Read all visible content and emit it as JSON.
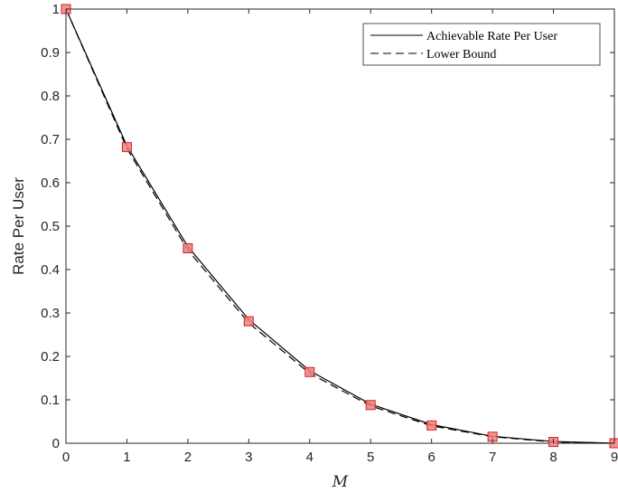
{
  "chart_data": {
    "type": "line",
    "xlabel": "M",
    "ylabel": "Rate Per User",
    "xlim": [
      0,
      9
    ],
    "ylim": [
      0,
      1
    ],
    "xticks": [
      "0",
      "1",
      "2",
      "3",
      "4",
      "5",
      "6",
      "7",
      "8",
      "9"
    ],
    "yticks": [
      "0",
      "0.1",
      "0.2",
      "0.3",
      "0.4",
      "0.5",
      "0.6",
      "0.7",
      "0.8",
      "0.9",
      "1"
    ],
    "grid": false,
    "legend_position": "top-right",
    "x": [
      0,
      1,
      2,
      3,
      4,
      5,
      6,
      7,
      8,
      9
    ],
    "series": [
      {
        "name": "Achievable Rate Per User",
        "line_style": "solid",
        "color": "#000000",
        "values": [
          1.0,
          0.685,
          0.453,
          0.285,
          0.167,
          0.09,
          0.043,
          0.016,
          0.004,
          0.0
        ]
      },
      {
        "name": "Lower Bound",
        "line_style": "dashed",
        "color": "#000000",
        "values": [
          1.0,
          0.679,
          0.445,
          0.277,
          0.161,
          0.086,
          0.04,
          0.015,
          0.003,
          0.0
        ]
      }
    ],
    "markers": {
      "shape": "square",
      "fill": "#f08080",
      "stroke": "#d62020",
      "values": [
        1.0,
        0.682,
        0.449,
        0.281,
        0.164,
        0.088,
        0.041,
        0.015,
        0.003,
        0.0
      ]
    }
  }
}
